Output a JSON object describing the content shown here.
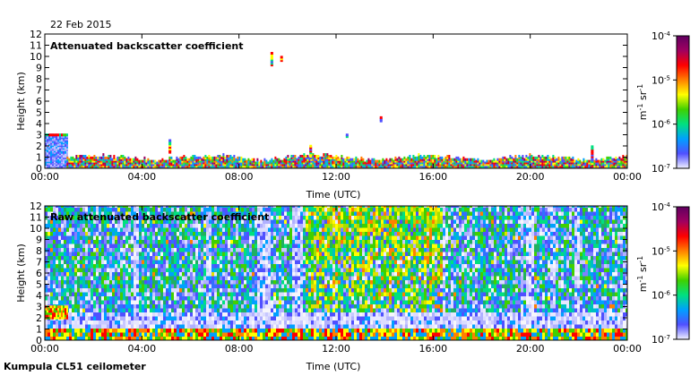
{
  "date": "22 Feb 2015",
  "footer": "Kumpula CL51 ceilometer",
  "chart_data": [
    {
      "type": "heatmap",
      "title": "Attenuated backscatter coefficient",
      "xlabel": "Time (UTC)",
      "ylabel": "Height (km)",
      "x_ticks": [
        "00:00",
        "04:00",
        "08:00",
        "12:00",
        "16:00",
        "20:00",
        "00:00"
      ],
      "y_ticks": [
        "0",
        "1",
        "2",
        "3",
        "4",
        "5",
        "6",
        "7",
        "8",
        "9",
        "10",
        "11",
        "12"
      ],
      "xlim_hours": [
        0,
        24
      ],
      "ylim_km": [
        0,
        12
      ],
      "features": [
        {
          "desc": "aerosol layer",
          "start_h": 0,
          "end_h": 0.9,
          "top_km": 3.1
        },
        {
          "desc": "boundary layer",
          "start_h": 0,
          "end_h": 24,
          "top_km": 1.0
        }
      ]
    },
    {
      "type": "heatmap",
      "title": "Raw attenuated backscatter coefficient",
      "xlabel": "Time (UTC)",
      "ylabel": "Height (km)",
      "x_ticks": [
        "00:00",
        "04:00",
        "08:00",
        "12:00",
        "16:00",
        "20:00",
        "00:00"
      ],
      "y_ticks": [
        "0",
        "1",
        "2",
        "3",
        "4",
        "5",
        "6",
        "7",
        "8",
        "9",
        "10",
        "11",
        "12"
      ],
      "xlim_hours": [
        0,
        24
      ],
      "ylim_km": [
        0,
        12
      ]
    }
  ],
  "colorbar": {
    "ticks": [
      {
        "base": "10",
        "exp": "-4",
        "log": -4
      },
      {
        "base": "10",
        "exp": "-5",
        "log": -5
      },
      {
        "base": "10",
        "exp": "-6",
        "log": -6
      },
      {
        "base": "10",
        "exp": "-7",
        "log": -7
      }
    ],
    "unit_m": "m",
    "unit_m_exp": "-1",
    "unit_sr": " sr",
    "unit_sr_exp": "-1",
    "range_log": [
      -7,
      -4
    ],
    "colors": [
      "#f0f0ff",
      "#5050ff",
      "#00a0ff",
      "#00e080",
      "#40d000",
      "#ffff00",
      "#ff8000",
      "#ff0000",
      "#a00060",
      "#600060"
    ]
  }
}
